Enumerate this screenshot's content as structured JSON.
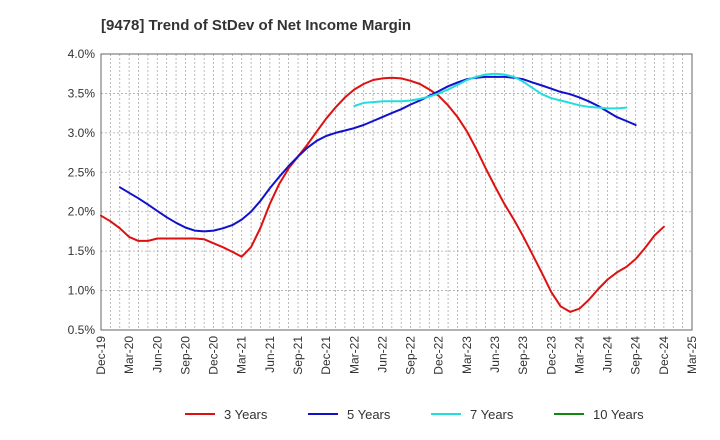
{
  "chart_data": {
    "type": "line",
    "title": "[9478]  Trend of StDev of Net Income Margin",
    "xlabel": "",
    "ylabel": "",
    "ylim": [
      0.5,
      4.0
    ],
    "y_ticks": [
      0.5,
      1.0,
      1.5,
      2.0,
      2.5,
      3.0,
      3.5,
      4.0
    ],
    "y_tick_labels": [
      "0.5%",
      "1.0%",
      "1.5%",
      "2.0%",
      "2.5%",
      "3.0%",
      "3.5%",
      "4.0%"
    ],
    "x_ticks": [
      "Dec-19",
      "Mar-20",
      "Jun-20",
      "Sep-20",
      "Dec-20",
      "Mar-21",
      "Jun-21",
      "Sep-21",
      "Dec-21",
      "Mar-22",
      "Jun-22",
      "Sep-22",
      "Dec-22",
      "Mar-23",
      "Jun-23",
      "Sep-23",
      "Dec-23",
      "Mar-24",
      "Jun-24",
      "Sep-24",
      "Dec-24",
      "Mar-25"
    ],
    "grid": true,
    "legend_position": "bottom",
    "series": [
      {
        "name": "3 Years",
        "color": "#dd1111",
        "values": [
          [
            0,
            1.95
          ],
          [
            0.33,
            1.88
          ],
          [
            0.67,
            1.79
          ],
          [
            1,
            1.68
          ],
          [
            1.33,
            1.63
          ],
          [
            1.67,
            1.63
          ],
          [
            2,
            1.66
          ],
          [
            2.33,
            1.66
          ],
          [
            2.67,
            1.66
          ],
          [
            3,
            1.66
          ],
          [
            3.33,
            1.66
          ],
          [
            3.67,
            1.65
          ],
          [
            4,
            1.6
          ],
          [
            4.33,
            1.55
          ],
          [
            4.67,
            1.49
          ],
          [
            5,
            1.43
          ],
          [
            5.33,
            1.55
          ],
          [
            5.67,
            1.8
          ],
          [
            6,
            2.1
          ],
          [
            6.33,
            2.35
          ],
          [
            6.67,
            2.55
          ],
          [
            7,
            2.7
          ],
          [
            7.33,
            2.85
          ],
          [
            7.67,
            3.02
          ],
          [
            8,
            3.18
          ],
          [
            8.33,
            3.32
          ],
          [
            8.67,
            3.45
          ],
          [
            9,
            3.55
          ],
          [
            9.33,
            3.62
          ],
          [
            9.67,
            3.67
          ],
          [
            10,
            3.69
          ],
          [
            10.33,
            3.7
          ],
          [
            10.67,
            3.69
          ],
          [
            11,
            3.66
          ],
          [
            11.33,
            3.62
          ],
          [
            11.67,
            3.55
          ],
          [
            12,
            3.47
          ],
          [
            12.33,
            3.35
          ],
          [
            12.67,
            3.2
          ],
          [
            13,
            3.02
          ],
          [
            13.33,
            2.8
          ],
          [
            13.67,
            2.55
          ],
          [
            14,
            2.32
          ],
          [
            14.33,
            2.1
          ],
          [
            14.67,
            1.9
          ],
          [
            15,
            1.69
          ],
          [
            15.33,
            1.46
          ],
          [
            15.67,
            1.22
          ],
          [
            16,
            0.98
          ],
          [
            16.33,
            0.8
          ],
          [
            16.67,
            0.73
          ],
          [
            17,
            0.77
          ],
          [
            17.33,
            0.88
          ],
          [
            17.67,
            1.02
          ],
          [
            18,
            1.14
          ],
          [
            18.33,
            1.23
          ],
          [
            18.67,
            1.3
          ],
          [
            19,
            1.4
          ],
          [
            19.33,
            1.54
          ],
          [
            19.67,
            1.7
          ],
          [
            20,
            1.81
          ]
        ]
      },
      {
        "name": "5 Years",
        "color": "#1111cc",
        "values": [
          [
            0.67,
            2.31
          ],
          [
            1,
            2.24
          ],
          [
            1.33,
            2.17
          ],
          [
            1.67,
            2.09
          ],
          [
            2,
            2.01
          ],
          [
            2.33,
            1.93
          ],
          [
            2.67,
            1.86
          ],
          [
            3,
            1.8
          ],
          [
            3.33,
            1.76
          ],
          [
            3.67,
            1.75
          ],
          [
            4,
            1.76
          ],
          [
            4.33,
            1.79
          ],
          [
            4.67,
            1.83
          ],
          [
            5,
            1.9
          ],
          [
            5.33,
            2.0
          ],
          [
            5.67,
            2.14
          ],
          [
            6,
            2.3
          ],
          [
            6.33,
            2.44
          ],
          [
            6.67,
            2.58
          ],
          [
            7,
            2.7
          ],
          [
            7.33,
            2.81
          ],
          [
            7.67,
            2.9
          ],
          [
            8,
            2.96
          ],
          [
            8.33,
            3.0
          ],
          [
            8.67,
            3.03
          ],
          [
            9,
            3.06
          ],
          [
            9.33,
            3.1
          ],
          [
            9.67,
            3.15
          ],
          [
            10,
            3.2
          ],
          [
            10.33,
            3.25
          ],
          [
            10.67,
            3.3
          ],
          [
            11,
            3.36
          ],
          [
            11.33,
            3.41
          ],
          [
            11.67,
            3.47
          ],
          [
            12,
            3.53
          ],
          [
            12.33,
            3.59
          ],
          [
            12.67,
            3.64
          ],
          [
            13,
            3.68
          ],
          [
            13.33,
            3.7
          ],
          [
            13.67,
            3.71
          ],
          [
            14,
            3.71
          ],
          [
            14.33,
            3.71
          ],
          [
            14.67,
            3.7
          ],
          [
            15,
            3.68
          ],
          [
            15.33,
            3.64
          ],
          [
            15.67,
            3.6
          ],
          [
            16,
            3.56
          ],
          [
            16.33,
            3.52
          ],
          [
            16.67,
            3.49
          ],
          [
            17,
            3.45
          ],
          [
            17.33,
            3.4
          ],
          [
            17.67,
            3.34
          ],
          [
            18,
            3.27
          ],
          [
            18.33,
            3.2
          ],
          [
            18.67,
            3.15
          ],
          [
            19,
            3.1
          ]
        ]
      },
      {
        "name": "7 Years",
        "color": "#22dddd",
        "values": [
          [
            9,
            3.34
          ],
          [
            9.33,
            3.38
          ],
          [
            9.67,
            3.39
          ],
          [
            10,
            3.4
          ],
          [
            10.33,
            3.4
          ],
          [
            10.67,
            3.4
          ],
          [
            11,
            3.41
          ],
          [
            11.33,
            3.43
          ],
          [
            11.67,
            3.46
          ],
          [
            12,
            3.5
          ],
          [
            12.33,
            3.55
          ],
          [
            12.67,
            3.61
          ],
          [
            13,
            3.67
          ],
          [
            13.33,
            3.71
          ],
          [
            13.67,
            3.74
          ],
          [
            14,
            3.75
          ],
          [
            14.33,
            3.74
          ],
          [
            14.67,
            3.71
          ],
          [
            15,
            3.65
          ],
          [
            15.33,
            3.57
          ],
          [
            15.67,
            3.49
          ],
          [
            16,
            3.44
          ],
          [
            16.33,
            3.41
          ],
          [
            16.67,
            3.38
          ],
          [
            17,
            3.35
          ],
          [
            17.33,
            3.33
          ],
          [
            17.67,
            3.32
          ],
          [
            18,
            3.31
          ],
          [
            18.33,
            3.31
          ],
          [
            18.67,
            3.32
          ]
        ]
      },
      {
        "name": "10 Years",
        "color": "#118811",
        "values": []
      }
    ]
  }
}
